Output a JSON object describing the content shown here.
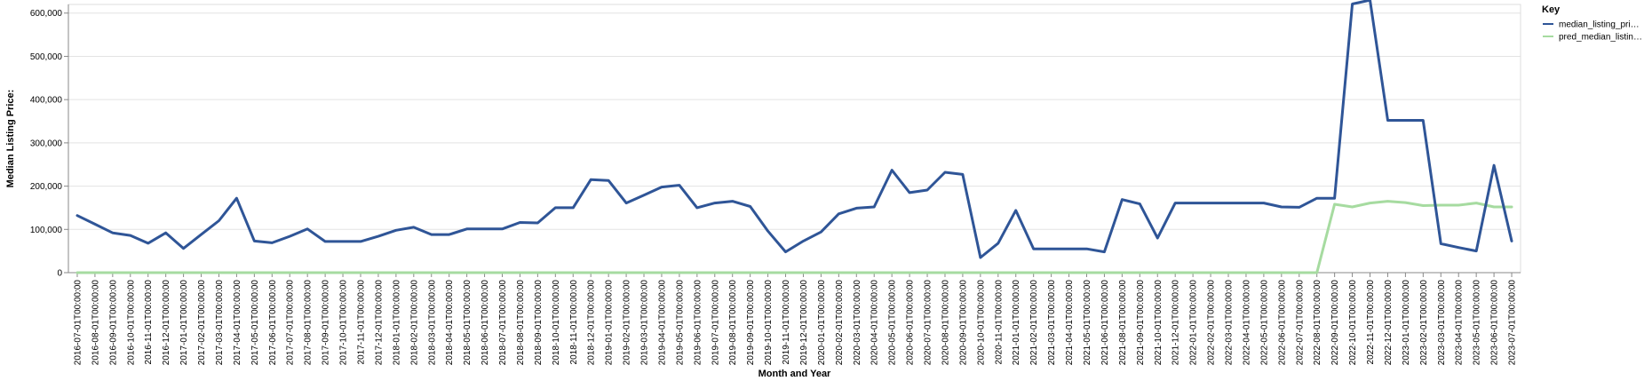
{
  "chart_data": {
    "type": "line",
    "xlabel": "Month and Year",
    "ylabel": "Median Listing Price:",
    "ylim": [
      0,
      600000
    ],
    "yticks": [
      0,
      100000,
      200000,
      300000,
      400000,
      500000,
      600000
    ],
    "ytick_labels": [
      "0",
      "100,000",
      "200,000",
      "300,000",
      "400,000",
      "500,000",
      "600,000"
    ],
    "grid": true,
    "legend": {
      "title": "Key",
      "position": "top-right",
      "entries": [
        "median_listing_pri…",
        "pred_median_listin…"
      ]
    },
    "x": [
      "2016-07-01T00:00:00",
      "2016-08-01T00:00:00",
      "2016-09-01T00:00:00",
      "2016-10-01T00:00:00",
      "2016-11-01T00:00:00",
      "2016-12-01T00:00:00",
      "2017-01-01T00:00:00",
      "2017-02-01T00:00:00",
      "2017-03-01T00:00:00",
      "2017-04-01T00:00:00",
      "2017-05-01T00:00:00",
      "2017-06-01T00:00:00",
      "2017-07-01T00:00:00",
      "2017-08-01T00:00:00",
      "2017-09-01T00:00:00",
      "2017-10-01T00:00:00",
      "2017-11-01T00:00:00",
      "2017-12-01T00:00:00",
      "2018-01-01T00:00:00",
      "2018-02-01T00:00:00",
      "2018-03-01T00:00:00",
      "2018-04-01T00:00:00",
      "2018-05-01T00:00:00",
      "2018-06-01T00:00:00",
      "2018-07-01T00:00:00",
      "2018-08-01T00:00:00",
      "2018-09-01T00:00:00",
      "2018-10-01T00:00:00",
      "2018-11-01T00:00:00",
      "2018-12-01T00:00:00",
      "2019-01-01T00:00:00",
      "2019-02-01T00:00:00",
      "2019-03-01T00:00:00",
      "2019-04-01T00:00:00",
      "2019-05-01T00:00:00",
      "2019-06-01T00:00:00",
      "2019-07-01T00:00:00",
      "2019-08-01T00:00:00",
      "2019-09-01T00:00:00",
      "2019-10-01T00:00:00",
      "2019-11-01T00:00:00",
      "2019-12-01T00:00:00",
      "2020-01-01T00:00:00",
      "2020-02-01T00:00:00",
      "2020-03-01T00:00:00",
      "2020-04-01T00:00:00",
      "2020-05-01T00:00:00",
      "2020-06-01T00:00:00",
      "2020-07-01T00:00:00",
      "2020-08-01T00:00:00",
      "2020-09-01T00:00:00",
      "2020-10-01T00:00:00",
      "2020-11-01T00:00:00",
      "2021-01-01T00:00:00",
      "2021-02-01T00:00:00",
      "2021-03-01T00:00:00",
      "2021-04-01T00:00:00",
      "2021-05-01T00:00:00",
      "2021-06-01T00:00:00",
      "2021-08-01T00:00:00",
      "2021-09-01T00:00:00",
      "2021-10-01T00:00:00",
      "2021-12-01T00:00:00",
      "2022-01-01T00:00:00",
      "2022-02-01T00:00:00",
      "2022-03-01T00:00:00",
      "2022-04-01T00:00:00",
      "2022-05-01T00:00:00",
      "2022-06-01T00:00:00",
      "2022-07-01T00:00:00",
      "2022-08-01T00:00:00",
      "2022-09-01T00:00:00",
      "2022-10-01T00:00:00",
      "2022-11-01T00:00:00",
      "2022-12-01T00:00:00",
      "2023-01-01T00:00:00",
      "2023-02-01T00:00:00",
      "2023-03-01T00:00:00",
      "2023-04-01T00:00:00",
      "2023-05-01T00:00:00",
      "2023-06-01T00:00:00",
      "2023-07-01T00:00:00"
    ],
    "series": [
      {
        "name": "median_listing_pri…",
        "color": "#2f5597",
        "values": [
          132000,
          112000,
          92000,
          86000,
          68000,
          92000,
          56000,
          88000,
          120000,
          172000,
          73000,
          69000,
          84000,
          101000,
          72000,
          72000,
          72000,
          84000,
          98000,
          105000,
          88000,
          88000,
          101000,
          101000,
          101000,
          116000,
          115000,
          150000,
          150000,
          215000,
          213000,
          161000,
          179000,
          198000,
          202000,
          150000,
          161000,
          165000,
          153000,
          96000,
          48000,
          73000,
          94000,
          136000,
          149000,
          152000,
          237000,
          185000,
          191000,
          232000,
          227000,
          35000,
          68000,
          144000,
          55000,
          55000,
          55000,
          55000,
          48000,
          169000,
          159000,
          80000,
          161000,
          161000,
          161000,
          161000,
          161000,
          161000,
          152000,
          151000,
          172000,
          172000,
          621000,
          630000,
          352000,
          352000,
          352000,
          67000,
          58000,
          50000,
          248000,
          73000
        ]
      },
      {
        "name": "pred_median_listin…",
        "color": "#a6dba0",
        "values": [
          0,
          0,
          0,
          0,
          0,
          0,
          0,
          0,
          0,
          0,
          0,
          0,
          0,
          0,
          0,
          0,
          0,
          0,
          0,
          0,
          0,
          0,
          0,
          0,
          0,
          0,
          0,
          0,
          0,
          0,
          0,
          0,
          0,
          0,
          0,
          0,
          0,
          0,
          0,
          0,
          0,
          0,
          0,
          0,
          0,
          0,
          0,
          0,
          0,
          0,
          0,
          0,
          0,
          0,
          0,
          0,
          0,
          0,
          0,
          0,
          0,
          0,
          0,
          0,
          0,
          0,
          0,
          0,
          0,
          0,
          0,
          158000,
          152000,
          161000,
          165000,
          162000,
          155000,
          156000,
          156000,
          161000,
          152000,
          152000
        ]
      }
    ]
  }
}
